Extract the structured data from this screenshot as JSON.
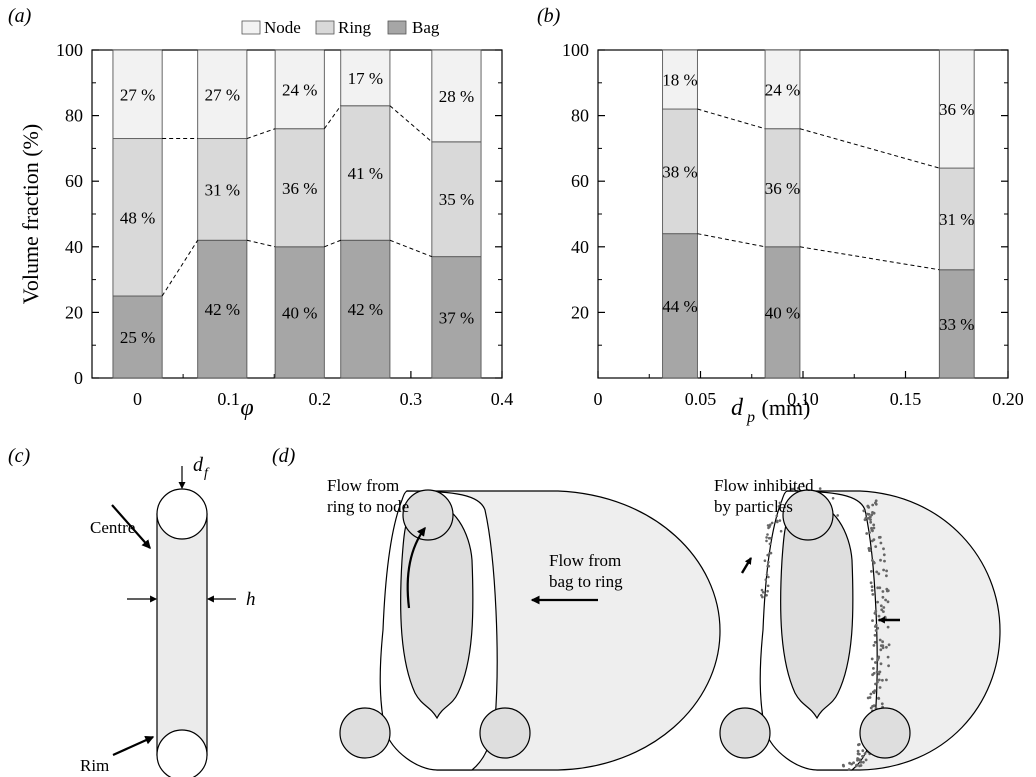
{
  "panel_labels": {
    "a": "(a)",
    "b": "(b)",
    "c": "(c)",
    "d": "(d)"
  },
  "colors": {
    "node": "#f2f2f2",
    "ring": "#d9d9d9",
    "bag": "#a6a6a6",
    "blob": "#eeeeee",
    "bubble": "#dedede",
    "dots": "#666666"
  },
  "chart_data": [
    {
      "type": "bar",
      "stacked": true,
      "xlabel": "φ",
      "ylabel": "Volume fraction (%)",
      "xlim": [
        -0.05,
        0.4
      ],
      "ylim": [
        0,
        100
      ],
      "xticks": [
        0,
        0.1,
        0.2,
        0.3,
        0.4
      ],
      "xtick_labels": [
        "0",
        "0.1",
        "0.2",
        "0.3",
        "0.4"
      ],
      "yticks": [
        0,
        20,
        40,
        60,
        80,
        100
      ],
      "ytick_labels": [
        "0",
        "20",
        "40",
        "60",
        "80",
        "100"
      ],
      "bar_width": 0.054,
      "x": [
        0,
        0.093,
        0.178,
        0.25,
        0.35
      ],
      "series": [
        {
          "name": "Bag",
          "values": [
            25,
            42,
            40,
            42,
            37
          ],
          "labels": [
            "25 %",
            "42 %",
            "40 %",
            "42 %",
            "37 %"
          ]
        },
        {
          "name": "Ring",
          "values": [
            48,
            31,
            36,
            41,
            35
          ],
          "labels": [
            "48 %",
            "31 %",
            "36 %",
            "41 %",
            "35 %"
          ]
        },
        {
          "name": "Node",
          "values": [
            27,
            27,
            24,
            17,
            28
          ],
          "labels": [
            "27 %",
            "27 %",
            "24 %",
            "17 %",
            "28 %"
          ]
        }
      ],
      "legend": {
        "placement": "top-right",
        "entries": [
          "Node",
          "Ring",
          "Bag"
        ]
      },
      "grid": false
    },
    {
      "type": "bar",
      "stacked": true,
      "xlabel": "d",
      "xlabel_sub": "p",
      "xlabel_unit": " (mm)",
      "ylabel": "",
      "xlim": [
        0,
        0.2
      ],
      "ylim": [
        0,
        100
      ],
      "xticks": [
        0,
        0.05,
        0.1,
        0.15,
        0.2
      ],
      "xtick_labels": [
        "0",
        "0.05",
        "0.10",
        "0.15",
        "0.20"
      ],
      "yticks": [
        20,
        40,
        60,
        80,
        100
      ],
      "ytick_labels": [
        "20",
        "40",
        "60",
        "80",
        "100"
      ],
      "bar_width": 0.017,
      "x": [
        0.04,
        0.09,
        0.175
      ],
      "series": [
        {
          "name": "Bag",
          "values": [
            44,
            40,
            33
          ],
          "labels": [
            "44 %",
            "40 %",
            "33 %"
          ]
        },
        {
          "name": "Ring",
          "values": [
            38,
            36,
            31
          ],
          "labels": [
            "38 %",
            "36 %",
            "31 %"
          ]
        },
        {
          "name": "Node",
          "values": [
            18,
            24,
            36
          ],
          "labels": [
            "18 %",
            "24 %",
            "36 %"
          ]
        }
      ],
      "grid": false
    }
  ],
  "panel_c": {
    "labels": {
      "df": "d",
      "df_sub": "f",
      "h": "h",
      "centre": "Centre",
      "rim": "Rim"
    }
  },
  "panel_d": {
    "left": {
      "upper_label": [
        "Flow from",
        "ring to node"
      ],
      "lower_label": [
        "Flow from",
        "bag to ring"
      ]
    },
    "right": {
      "label": [
        "Flow inhibited",
        "by particles"
      ]
    }
  }
}
